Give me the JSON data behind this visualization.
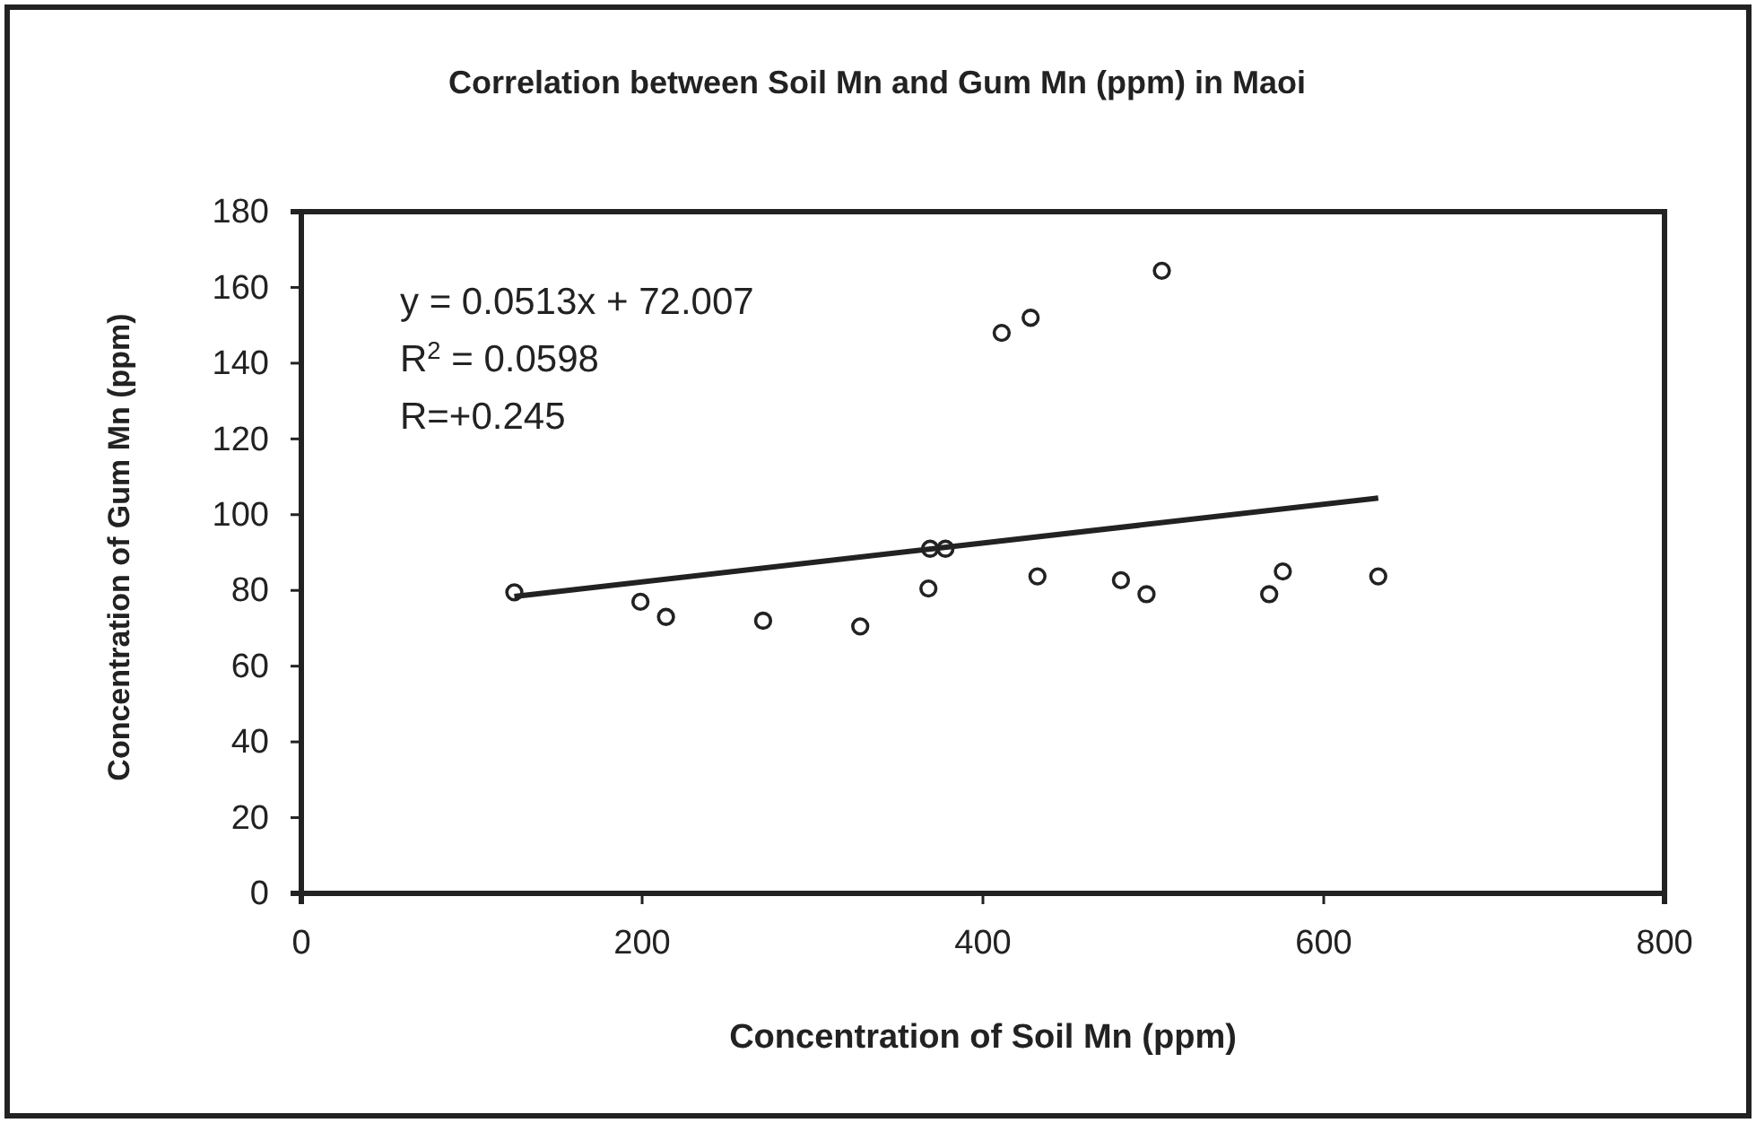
{
  "chart_data": {
    "type": "scatter",
    "title": "Correlation between Soil Mn and Gum Mn (ppm) in Maoi",
    "xlabel": "Concentration of Soil Mn (ppm)",
    "ylabel": "Concentration of Gum Mn (ppm)",
    "xlim": [
      0,
      800
    ],
    "xticks": [
      0,
      200,
      400,
      600,
      800
    ],
    "ylim": [
      0,
      180
    ],
    "yticks": [
      0,
      20,
      40,
      60,
      80,
      100,
      120,
      140,
      160,
      180
    ],
    "grid": false,
    "annotations": [
      "y = 0.0513x + 72.007",
      "R$^{2}$ = 0.0598",
      "R=+0.245"
    ],
    "series": [
      {
        "color": "#222222",
        "marker": "circle",
        "x": [
          125,
          199,
          214,
          271,
          328,
          368,
          369,
          378,
          411,
          428,
          432,
          481,
          496,
          505,
          568,
          576,
          632
        ],
        "values": [
          79.5,
          77,
          73,
          72,
          70.5,
          80.5,
          91,
          91,
          148,
          152,
          83.7,
          82.7,
          79,
          164.4,
          79,
          85,
          83.7
        ]
      },
      {
        "type": "line",
        "marker": "none",
        "color": "#222222",
        "x": [
          125,
          632
        ],
        "values": [
          78.4,
          104.4
        ]
      }
    ]
  }
}
